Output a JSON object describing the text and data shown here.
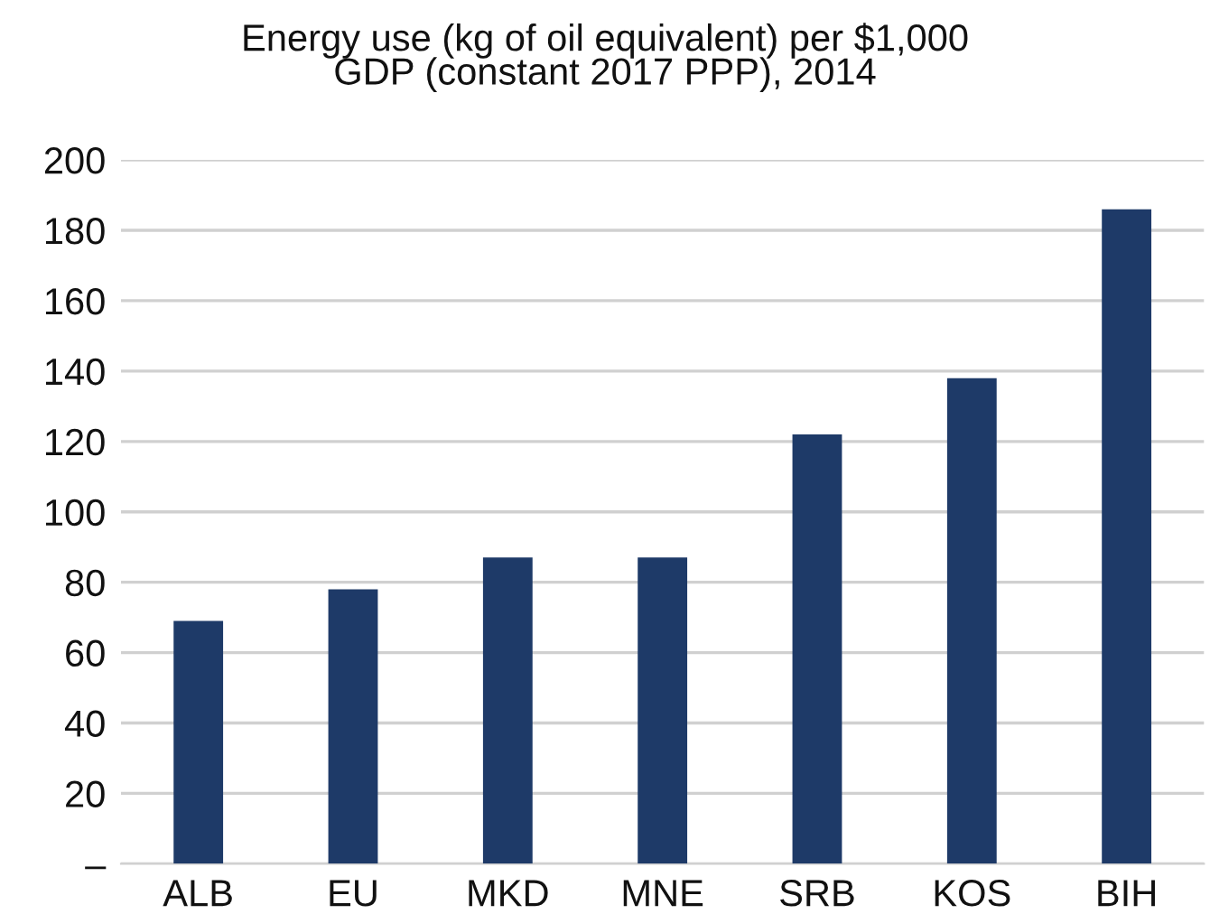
{
  "chart_data": {
    "type": "bar",
    "title": "Energy use (kg of oil equivalent) per $1,000\nGDP (constant 2017 PPP), 2014",
    "categories": [
      "ALB",
      "EU",
      "MKD",
      "MNE",
      "SRB",
      "KOS",
      "BIH"
    ],
    "values": [
      69,
      78,
      87,
      87,
      122,
      138,
      186
    ],
    "color": "#1e3a68",
    "ylim": [
      0,
      200
    ],
    "yticks": [
      {
        "value": 0,
        "label": "–"
      },
      20,
      40,
      60,
      80,
      100,
      120,
      140,
      160,
      180,
      200
    ],
    "grid": "y"
  }
}
